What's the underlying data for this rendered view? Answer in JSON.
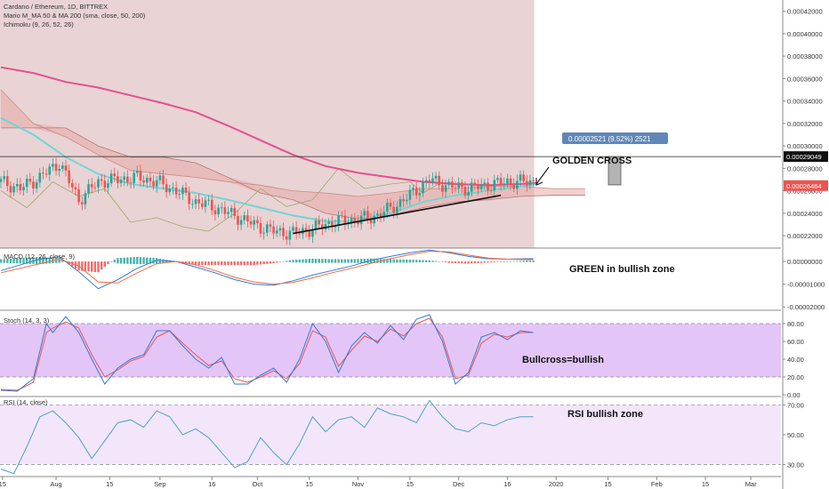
{
  "chart_data": {
    "type": "line",
    "header": {
      "title": "Cardano / Ethereum, 1D, BITTREX",
      "indicator1": "Mario M_MA 50 & MA 200 (sma, close, 50, 200)",
      "indicator2": "Ichimoku (9, 26, 52, 26)"
    },
    "price_axis": {
      "ticks": [
        "0.00042000",
        "0.00040000",
        "0.00038000",
        "0.00036000",
        "0.00034000",
        "0.00032000",
        "0.00030000",
        "0.00028000",
        "0.00026000",
        "0.00024000",
        "0.00022000"
      ],
      "ylim": [
        0.000209,
        0.00043
      ],
      "current_price_label": "0.00026464",
      "current_price": 0.00026464,
      "target_price_label": "0.00029049",
      "target_price": 0.00029049
    },
    "measure_label": "0.00002521 (9.52%) 2521",
    "x_axis_labels": [
      "15",
      "Aug",
      "15",
      "Sep",
      "16",
      "Oct",
      "15",
      "Nov",
      "15",
      "Dec",
      "16",
      "2020",
      "15",
      "Feb",
      "15",
      "Mar"
    ],
    "x_label_positions": [
      0.5,
      17,
      33.5,
      49,
      65,
      79,
      95,
      110,
      126,
      141,
      156,
      171,
      187,
      202,
      217,
      231
    ],
    "annotations": {
      "golden_cross": "GOLDEN CROSS",
      "macd_note": "GREEN in bullish zone",
      "stoch_note": "Bullcross=bullish",
      "rsi_note": "RSI bullish zone"
    },
    "price": {
      "days": [
        0,
        6,
        12,
        18,
        24,
        30,
        36,
        42,
        48,
        54,
        60,
        66,
        72,
        78,
        84,
        90,
        96,
        102,
        108,
        114,
        120,
        126,
        132,
        138,
        144,
        150,
        156,
        162,
        164
      ],
      "close": [
        0.000268,
        0.000262,
        0.000272,
        0.000285,
        0.000252,
        0.000268,
        0.00027,
        0.000272,
        0.000268,
        0.00026,
        0.00025,
        0.000245,
        0.000238,
        0.00023,
        0.000224,
        0.000222,
        0.000226,
        0.000232,
        0.000234,
        0.000236,
        0.000244,
        0.000256,
        0.00027,
        0.000264,
        0.000262,
        0.000265,
        0.000268,
        0.000268,
        0.000268
      ]
    },
    "ma200": {
      "days": [
        0,
        10,
        20,
        30,
        40,
        50,
        60,
        70,
        80,
        90,
        100,
        110,
        120,
        130,
        140,
        150,
        160,
        165
      ],
      "values": [
        0.00037,
        0.000365,
        0.000357,
        0.000352,
        0.000345,
        0.000338,
        0.00033,
        0.000318,
        0.000305,
        0.000292,
        0.000282,
        0.000276,
        0.000272,
        0.000268,
        0.000266,
        0.000265,
        0.000266,
        0.000267
      ]
    },
    "ma50": {
      "days": [
        0,
        10,
        20,
        30,
        40,
        50,
        60,
        70,
        80,
        90,
        100,
        110,
        120,
        130,
        140,
        150,
        160,
        165
      ],
      "values": [
        0.000325,
        0.00031,
        0.00029,
        0.000275,
        0.000266,
        0.000262,
        0.000258,
        0.000252,
        0.000245,
        0.000238,
        0.000233,
        0.000233,
        0.00024,
        0.00025,
        0.000256,
        0.00026,
        0.000264,
        0.000266
      ]
    },
    "cloud_span_a": {
      "days": [
        0,
        10,
        20,
        30,
        40,
        50,
        60,
        70,
        80,
        90,
        100,
        110,
        120,
        130,
        140,
        150,
        160,
        170,
        180
      ],
      "values": [
        0.00035,
        0.00032,
        0.000308,
        0.000292,
        0.000278,
        0.000275,
        0.000272,
        0.000268,
        0.000265,
        0.00026,
        0.000258,
        0.000255,
        0.000258,
        0.000262,
        0.000262,
        0.000264,
        0.000264,
        0.000262,
        0.000262
      ]
    },
    "cloud_span_b": {
      "days": [
        0,
        10,
        20,
        30,
        40,
        50,
        60,
        70,
        80,
        90,
        100,
        110,
        120,
        130,
        140,
        150,
        160,
        170,
        180
      ],
      "values": [
        0.000316,
        0.000316,
        0.000316,
        0.0003,
        0.00029,
        0.00029,
        0.000285,
        0.000272,
        0.000258,
        0.000252,
        0.00024,
        0.000235,
        0.000238,
        0.000245,
        0.00025,
        0.000252,
        0.000255,
        0.000256,
        0.000256
      ]
    },
    "chikou": {
      "days": [
        0,
        8,
        16,
        24,
        32,
        40,
        48,
        56,
        64,
        72,
        80,
        88,
        96,
        104,
        112,
        120,
        126,
        130,
        136
      ],
      "values": [
        0.00026,
        0.000245,
        0.000268,
        0.000255,
        0.000262,
        0.000232,
        0.000236,
        0.000228,
        0.000224,
        0.00024,
        0.000262,
        0.000246,
        0.000252,
        0.00028,
        0.000262,
        0.000266,
        0.000268,
        0.000258,
        0.000268
      ]
    },
    "trendline": {
      "days": [
        90,
        154
      ],
      "values": [
        0.000222,
        0.000256
      ]
    },
    "macd": {
      "title": "MACD (12, 26, close, 9)",
      "ticks": [
        "0.00000000",
        "-0.00001000",
        "-0.00002000"
      ],
      "ylim": [
        -2.15e-05,
        5.5e-06
      ],
      "days": [
        0,
        12,
        18,
        24,
        30,
        36,
        42,
        48,
        54,
        60,
        66,
        72,
        78,
        84,
        90,
        96,
        102,
        108,
        114,
        120,
        126,
        132,
        138,
        144,
        150,
        156,
        162,
        164
      ],
      "macd": [
        -4e-06,
        1e-06,
        2e-06,
        -4.5e-06,
        -1.2e-05,
        -8e-06,
        -3e-06,
        5e-07,
        0.0,
        -2.5e-06,
        -5e-06,
        -8e-06,
        -1e-05,
        -1.05e-05,
        -8.5e-06,
        -6e-06,
        -4e-06,
        -2e-06,
        5e-07,
        2.2e-06,
        3.8e-06,
        5e-06,
        3.8e-06,
        2.2e-06,
        1.2e-06,
        1e-06,
        1.2e-06,
        1.2e-06
      ],
      "signal": [
        -5e-06,
        -1e-06,
        1e-06,
        -2e-06,
        -9e-06,
        -9.5e-06,
        -5e-06,
        -1e-06,
        0.0,
        -1.5e-06,
        -4e-06,
        -7e-06,
        -9e-06,
        -1e-05,
        -9.2e-06,
        -7.2e-06,
        -5e-06,
        -3e-06,
        -8e-07,
        1.2e-06,
        3e-06,
        4.5e-06,
        4.2e-06,
        2.8e-06,
        1.5e-06,
        1e-06,
        8e-07,
        8e-07
      ]
    },
    "stoch": {
      "title": "Stoch (14, 3, 3)",
      "ticks": [
        "80.00",
        "60.00",
        "40.00",
        "20.00",
        "0.00"
      ],
      "ylim": [
        -2,
        94
      ],
      "band": [
        20,
        80
      ],
      "days": [
        0,
        5,
        10,
        14,
        16,
        20,
        24,
        28,
        32,
        36,
        40,
        44,
        48,
        52,
        56,
        60,
        64,
        68,
        72,
        76,
        80,
        84,
        88,
        92,
        96,
        100,
        104,
        108,
        112,
        116,
        120,
        124,
        128,
        132,
        136,
        140,
        144,
        148,
        152,
        156,
        160,
        164
      ],
      "k": [
        5,
        4,
        18,
        80,
        70,
        88,
        70,
        40,
        12,
        30,
        40,
        45,
        72,
        72,
        55,
        40,
        30,
        42,
        12,
        12,
        22,
        30,
        14,
        40,
        80,
        60,
        25,
        55,
        70,
        58,
        78,
        62,
        85,
        90,
        60,
        12,
        25,
        65,
        70,
        62,
        72,
        70
      ],
      "d": [
        6,
        5,
        14,
        70,
        75,
        82,
        75,
        45,
        20,
        28,
        38,
        43,
        65,
        72,
        58,
        45,
        33,
        38,
        18,
        14,
        20,
        27,
        18,
        35,
        72,
        65,
        32,
        50,
        66,
        60,
        74,
        66,
        80,
        86,
        65,
        18,
        22,
        58,
        68,
        65,
        70,
        70
      ]
    },
    "rsi": {
      "title": "RSI (14, close)",
      "ticks": [
        "70.00",
        "50.00",
        "30.00"
      ],
      "ylim": [
        22,
        75
      ],
      "band": [
        30,
        70
      ],
      "days": [
        0,
        4,
        8,
        12,
        16,
        20,
        24,
        28,
        32,
        36,
        40,
        44,
        48,
        52,
        56,
        60,
        64,
        68,
        72,
        76,
        80,
        84,
        88,
        92,
        96,
        100,
        104,
        108,
        112,
        116,
        120,
        124,
        128,
        132,
        136,
        140,
        144,
        148,
        152,
        156,
        160,
        164
      ],
      "values": [
        27,
        24,
        42,
        62,
        66,
        58,
        48,
        34,
        46,
        58,
        60,
        55,
        66,
        62,
        50,
        54,
        48,
        38,
        28,
        32,
        48,
        38,
        30,
        44,
        62,
        52,
        60,
        62,
        55,
        68,
        64,
        62,
        58,
        73,
        62,
        54,
        52,
        58,
        56,
        60,
        62,
        62
      ]
    }
  }
}
